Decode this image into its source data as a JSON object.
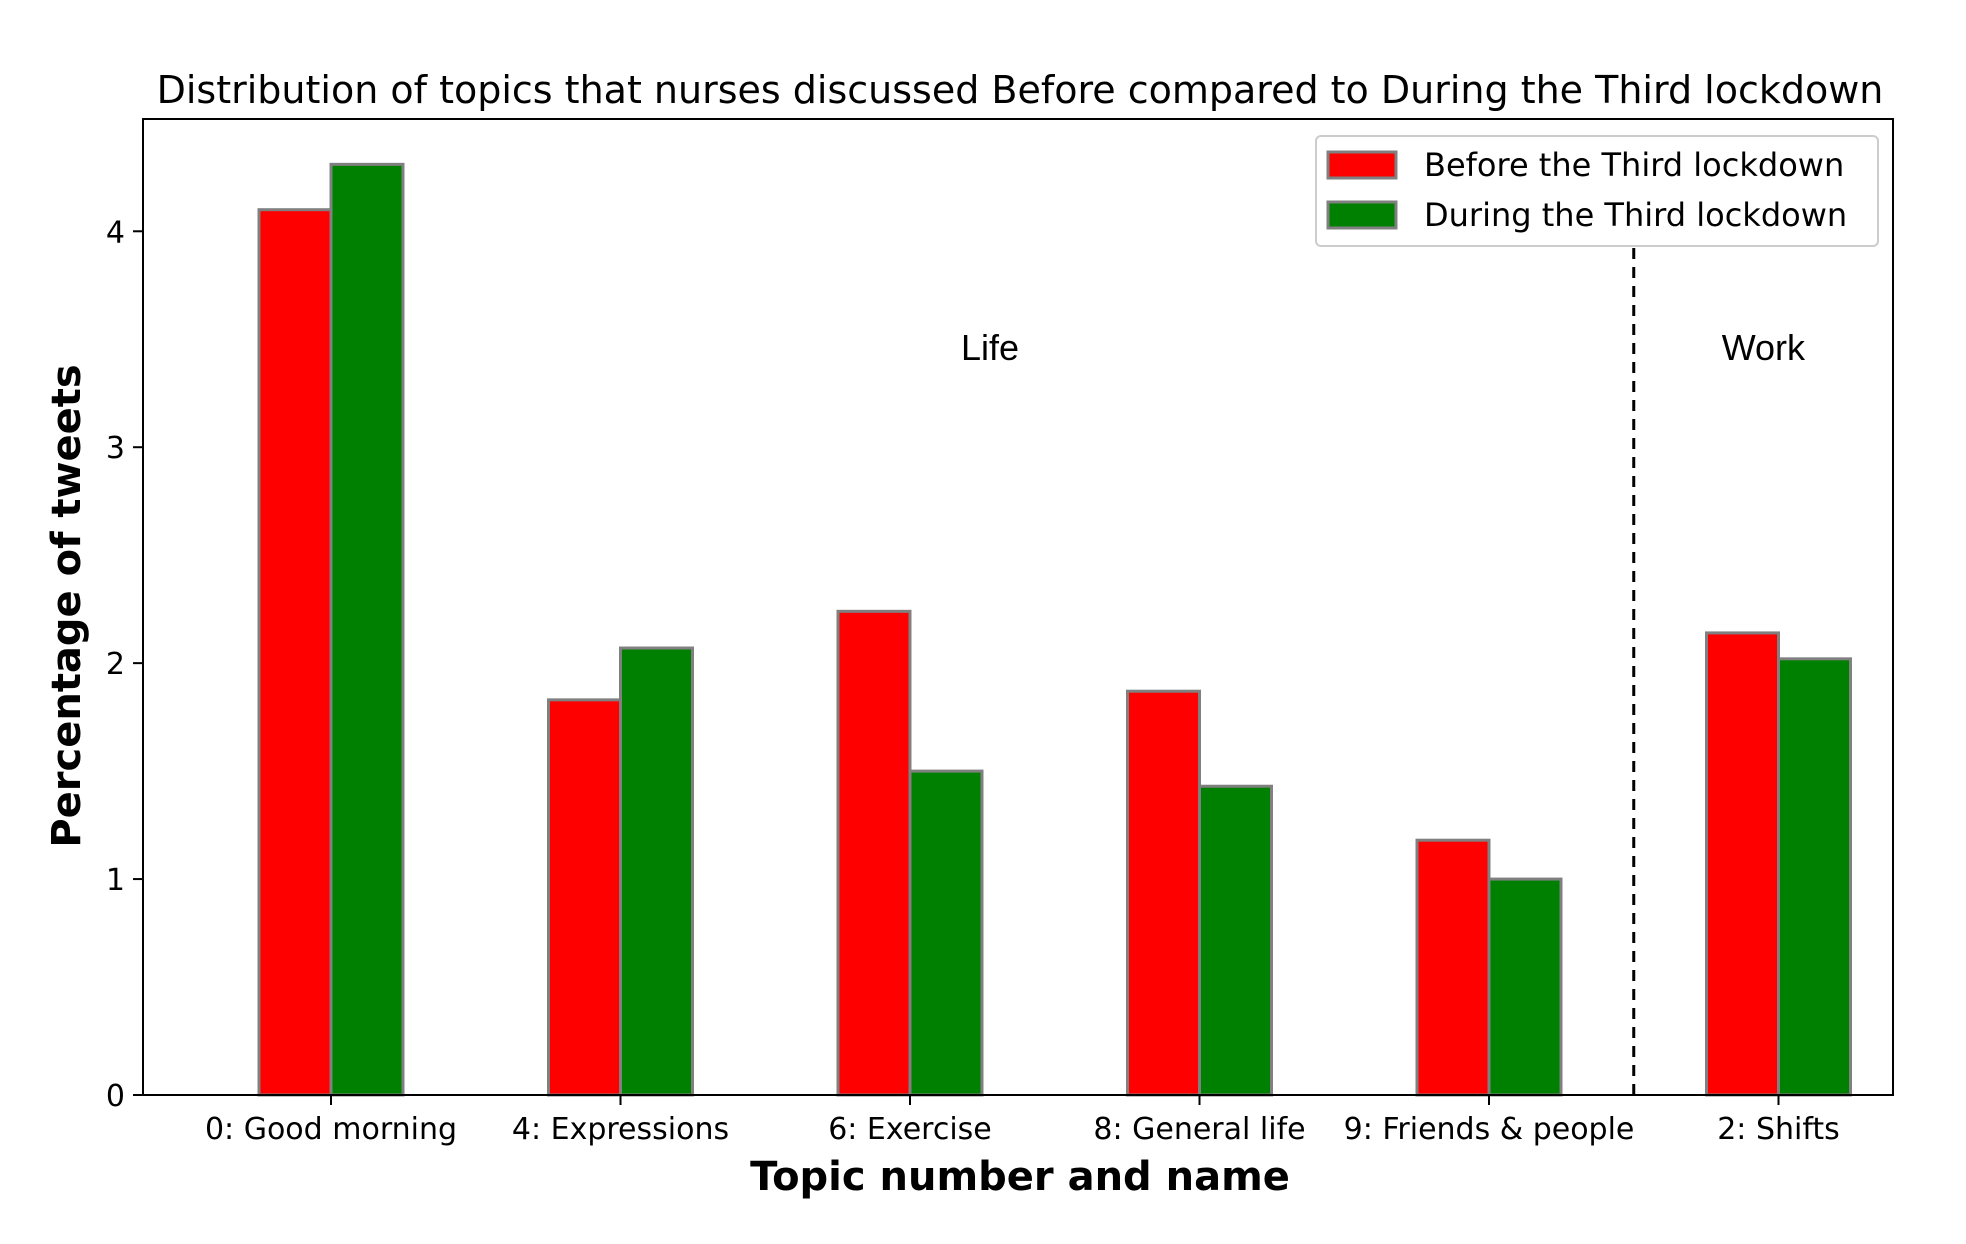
{
  "chart_data": {
    "type": "bar",
    "title": "Distribution of topics that nurses discussed Before compared to During the Third lockdown",
    "xlabel": "Topic number and name",
    "ylabel": "Percentage of tweets",
    "categories": [
      "0: Good morning",
      "4: Expressions",
      "6: Exercise",
      "8: General life",
      "9: Friends & people",
      "2: Shifts"
    ],
    "series": [
      {
        "name": "Before the Third lockdown",
        "color": "#ff0000",
        "values": [
          4.1,
          1.83,
          2.24,
          1.87,
          1.18,
          2.14
        ]
      },
      {
        "name": "During the Third lockdown",
        "color": "#008000",
        "values": [
          4.31,
          2.07,
          1.5,
          1.43,
          1.0,
          2.02
        ]
      }
    ],
    "ylim": [
      0,
      4.52
    ],
    "yticks": [
      0,
      1,
      2,
      3,
      4
    ],
    "bar_edge_color": "#808080",
    "legend_position": "upper right",
    "grid": false,
    "annotations": [
      {
        "text": "Life",
        "region": "left"
      },
      {
        "text": "Work",
        "region": "right"
      }
    ],
    "divider": {
      "style": "dashed",
      "between_categories": [
        4,
        5
      ]
    }
  }
}
